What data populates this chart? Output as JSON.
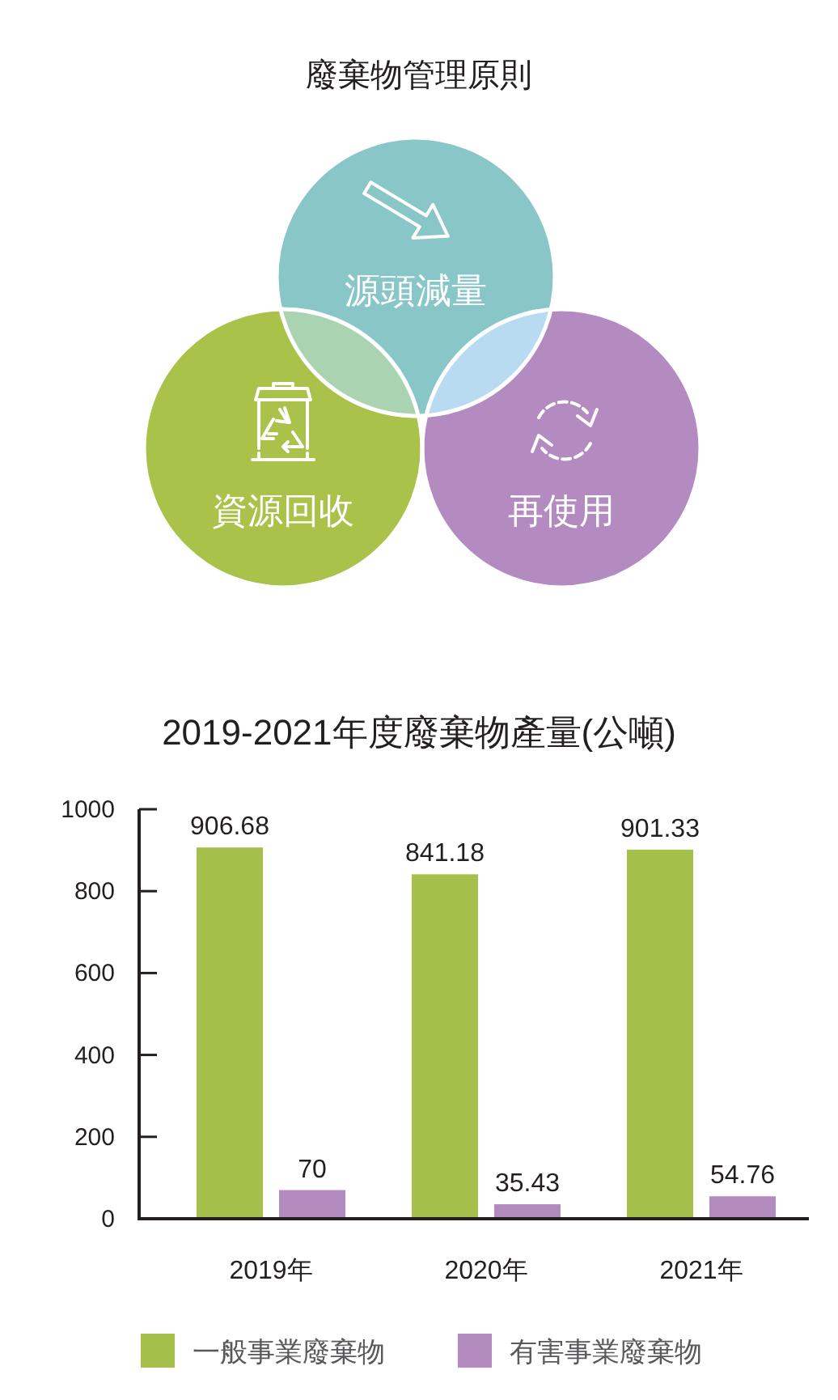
{
  "chart_data": [
    {
      "type": "other",
      "title": "廢棄物管理原則",
      "annotations": [
        "源頭減量",
        "資源回收",
        "再使用"
      ]
    },
    {
      "type": "bar",
      "title": "2019-2021年度廢棄物產量(公噸)",
      "categories": [
        "2019年",
        "2020年",
        "2021年"
      ],
      "series": [
        {
          "name": "一般事業廢棄物",
          "color": "#a5c04a",
          "values": [
            906.68,
            841.18,
            901.33
          ]
        },
        {
          "name": "有害事業廢棄物",
          "color": "#b48bbf",
          "values": [
            70,
            35.43,
            54.76
          ]
        }
      ],
      "ylim": [
        0,
        1000
      ],
      "yticks": [
        0,
        200,
        400,
        600,
        800,
        1000
      ],
      "data_labels": true,
      "legend": "bottom"
    }
  ]
}
